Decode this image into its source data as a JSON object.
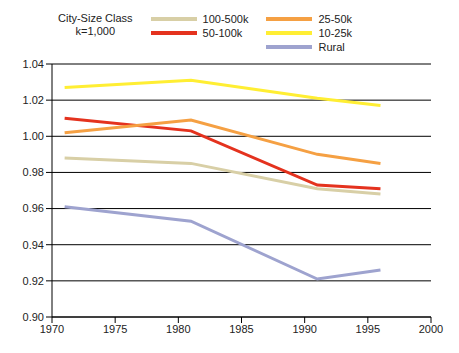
{
  "chart_data": {
    "type": "line",
    "legend_title": [
      "City-Size Class",
      "k=1,000"
    ],
    "legend": "top",
    "grid": true,
    "x": [
      1971,
      1981,
      1991,
      1996
    ],
    "xlim": [
      1970,
      2000
    ],
    "xticks": [
      1970,
      1975,
      1980,
      1985,
      1990,
      1995,
      2000
    ],
    "ylim": [
      0.9,
      1.04
    ],
    "yticks": [
      {
        "value": 0.9,
        "label": "0.90"
      },
      0.92,
      0.94,
      0.96,
      0.98,
      {
        "value": 1,
        "label": "1.00"
      },
      1.02,
      1.04
    ],
    "series": [
      {
        "name": "100-500k",
        "color": "#d8cfa6",
        "values": [
          0.988,
          0.985,
          0.971,
          0.968
        ]
      },
      {
        "name": "50-100k",
        "color": "#e4321e",
        "values": [
          1.01,
          1.003,
          0.973,
          0.971
        ]
      },
      {
        "name": "25-50k",
        "color": "#f5a043",
        "values": [
          1.002,
          1.009,
          0.99,
          0.985
        ]
      },
      {
        "name": "10-25k",
        "color": "#ffee33",
        "values": [
          1.027,
          1.031,
          1.021,
          1.017
        ]
      },
      {
        "name": "Rural",
        "color": "#9ea3cf",
        "values": [
          0.961,
          0.953,
          0.921,
          0.926
        ]
      }
    ]
  }
}
